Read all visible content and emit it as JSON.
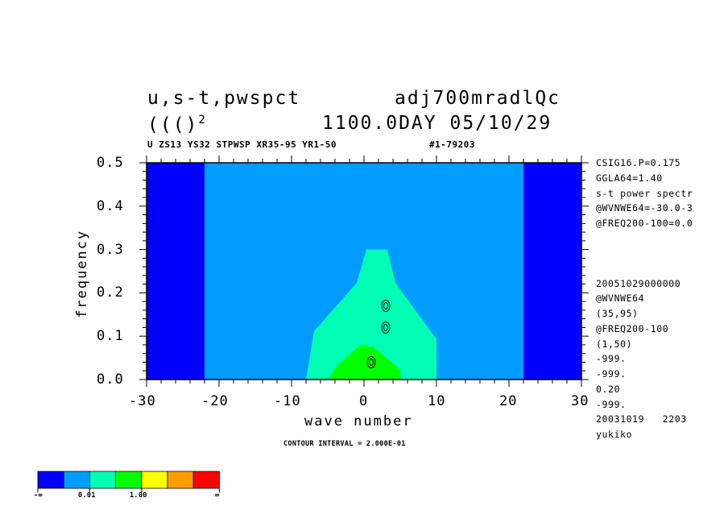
{
  "header": {
    "title_left": "u,s-t,pwspct",
    "title_right": "adj700mradlQc",
    "line2_left": "((()",
    "line2_sup": "2",
    "line2_right": "1100.0DAY 05/10/29",
    "subtitle": "U ZS13 YS32 STPWSP XR35-95 YR1-50",
    "subtitle_right": "#1-79203"
  },
  "side_info": {
    "top": [
      "CSIG16.P=0.175",
      "GGLA64=1.40",
      "s-t power spectr",
      "@WVNWE64=-30.0-3",
      "@FREQ200-100=0.0"
    ],
    "bottom": [
      "20051029000000",
      "@WVNWE64",
      "(35,95)",
      "@FREQ200-100",
      "(1,50)",
      "-999.",
      "-999.",
      "0.20",
      "-999.",
      "20031019   2203",
      "yukiko"
    ]
  },
  "contour_note": "CONTOUR INTERVAL = 2.000E-01",
  "colorbar": {
    "colors": [
      "#0000ff",
      "#009cff",
      "#00ffb4",
      "#00ff00",
      "#ffff00",
      "#ff9c00",
      "#ff0000"
    ],
    "labels": [
      "-∞",
      "0.01",
      "1.00",
      "∞"
    ]
  },
  "chart_data": {
    "type": "heatmap",
    "xlabel": "wave number",
    "ylabel": "frequency",
    "xlim": [
      -30,
      30
    ],
    "ylim": [
      0,
      0.5
    ],
    "xticks": [
      -30,
      -20,
      -10,
      0,
      10,
      20,
      30
    ],
    "yticks": [
      0.0,
      0.1,
      0.2,
      0.3,
      0.4,
      0.5
    ],
    "xtick_labels": [
      "-30",
      "-20",
      "-10",
      "0",
      "10",
      "20",
      "30"
    ],
    "ytick_labels": [
      "0.0",
      "0.1",
      "0.2",
      "0.3",
      "0.4",
      "0.5"
    ],
    "levels": [
      "-∞",
      "0.01",
      "1.00",
      "∞"
    ],
    "colors": [
      "#0000ff",
      "#009cff",
      "#00ffb4",
      "#00ff00"
    ],
    "regions": [
      {
        "level": 0,
        "x": [
          -30,
          -22
        ],
        "y": [
          0,
          0.5
        ]
      },
      {
        "level": 0,
        "x": [
          22,
          30
        ],
        "y": [
          0,
          0.5
        ]
      },
      {
        "level": 1,
        "x": [
          -22,
          22
        ],
        "y": [
          0,
          0.5
        ]
      },
      {
        "level": 2,
        "x": [
          -8,
          10
        ],
        "y": [
          0,
          0.3
        ]
      },
      {
        "level": 3,
        "x": [
          -5,
          5
        ],
        "y": [
          0,
          0.08
        ]
      }
    ],
    "contours": [
      {
        "x": 1,
        "y": 0.04,
        "value": 0.2
      },
      {
        "x": 3,
        "y": 0.12,
        "value": 0.2
      },
      {
        "x": 3,
        "y": 0.17,
        "value": 0.2
      }
    ]
  }
}
